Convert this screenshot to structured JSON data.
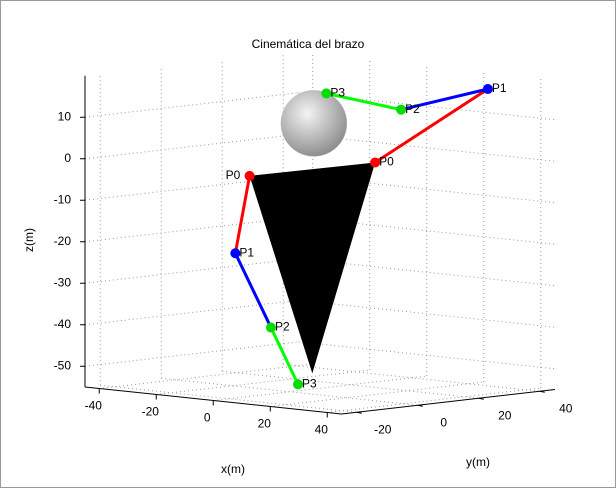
{
  "chart_data": {
    "type": "line3d",
    "title": "Cinemática del brazo",
    "xlabel": "x(m)",
    "ylabel": "y(m)",
    "zlabel": "z(m)",
    "xlim": [
      -45,
      45
    ],
    "ylim": [
      -25,
      45
    ],
    "zlim": [
      -55,
      20
    ],
    "xticks": [
      -40,
      -20,
      0,
      20,
      40
    ],
    "yticks": [
      -20,
      0,
      20,
      40
    ],
    "zticks": [
      -50,
      -40,
      -30,
      -20,
      -10,
      0,
      10
    ],
    "grid": true,
    "segment_colors": [
      "#ff0000",
      "#0000ff",
      "#00ff00"
    ],
    "point_colors": [
      "#ff0000",
      "#0000ff",
      "#00dd00",
      "#00dd00"
    ],
    "series": [
      {
        "labels": [
          "P0",
          "P1",
          "P2",
          "P3"
        ],
        "x": [
          -14,
          -19,
          -6.5,
          3
        ],
        "y": [
          0,
          0,
          0,
          0
        ],
        "z": [
          -4,
          -23,
          -40,
          -53
        ]
      },
      {
        "labels": [
          "P0",
          "P1",
          "P2",
          "P3"
        ],
        "x": [
          14,
          30,
          14,
          14
        ],
        "y": [
          15,
          37,
          23.5,
          -1
        ],
        "z": [
          0,
          17,
          12,
          18
        ]
      }
    ],
    "triangle": {
      "x": [
        -14,
        14,
        8
      ],
      "y": [
        0,
        15,
        0
      ],
      "z": [
        -4,
        0,
        -50
      ],
      "color": "#000000"
    },
    "sphere": {
      "x": 0,
      "y": 8,
      "z": 9,
      "radius": 11,
      "color": "#c0c0c0"
    }
  }
}
